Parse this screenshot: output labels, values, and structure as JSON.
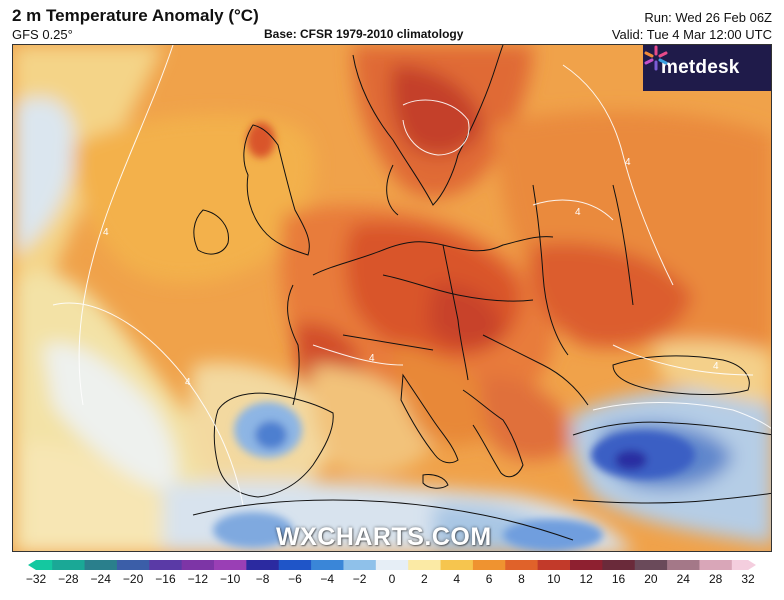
{
  "header": {
    "title": "2 m Temperature Anomaly (°C)",
    "model": "GFS 0.25°",
    "base": "Base: CFSR 1979-2010 climatology",
    "run": "Run: Wed 26 Feb 06Z",
    "valid": "Valid: Tue 4 Mar 12:00 UTC"
  },
  "logo": {
    "text": "metdesk",
    "icon": "asterisk-logo-icon",
    "background": "#1f1b4a"
  },
  "watermark": "WXCHARTS.COM",
  "colorbar": {
    "ticks": [
      "−32",
      "−28",
      "−24",
      "−20",
      "−16",
      "−12",
      "−10",
      "−8",
      "−6",
      "−4",
      "−2",
      "0",
      "2",
      "4",
      "6",
      "8",
      "10",
      "12",
      "16",
      "20",
      "24",
      "28",
      "32"
    ],
    "colors": [
      "#14c8a0",
      "#1aa896",
      "#2a7f8c",
      "#3b5ea8",
      "#5a3aa6",
      "#7d35a6",
      "#9a3fb5",
      "#2b2aa0",
      "#1f55c8",
      "#3a86d8",
      "#8fc1ea",
      "#e6eef6",
      "#fbeaa5",
      "#f6c54e",
      "#ef9330",
      "#e0622a",
      "#c23a2a",
      "#8e2030",
      "#6a2a3a",
      "#6a4a5a",
      "#a47888",
      "#d9a6b8",
      "#f4cede"
    ]
  },
  "contour_label": "4"
}
